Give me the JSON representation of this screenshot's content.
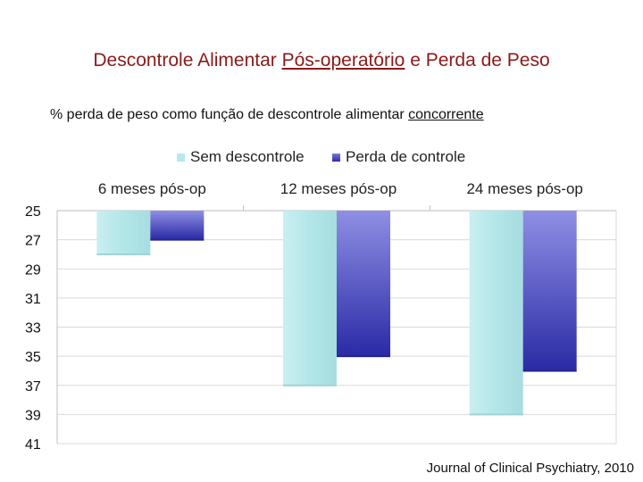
{
  "title": {
    "before": "Descontrole Alimentar ",
    "link": "Pós-operatório",
    "after": " e Perda de Peso"
  },
  "subtitle": {
    "before": "% perda de peso como função de descontrole alimentar ",
    "link": "concorrente"
  },
  "source": "Journal of Clinical Psychiatry, 2010",
  "colors": {
    "sem": "#b8e8ea",
    "perda": "#3a3ab4"
  },
  "chart_data": {
    "type": "bar",
    "categories": [
      "6 meses pós-op",
      "12 meses pós-op",
      "24 meses pós-op"
    ],
    "series": [
      {
        "name": "Sem descontrole",
        "values": [
          28,
          37,
          39
        ]
      },
      {
        "name": "Perda de controle",
        "values": [
          27,
          35,
          36
        ]
      }
    ],
    "yticks": [
      25,
      27,
      29,
      31,
      33,
      35,
      37,
      39,
      41
    ],
    "ylim": [
      25,
      41
    ],
    "y_inverted": true,
    "legend_position": "top",
    "category_labels_position": "top",
    "grid": true
  }
}
